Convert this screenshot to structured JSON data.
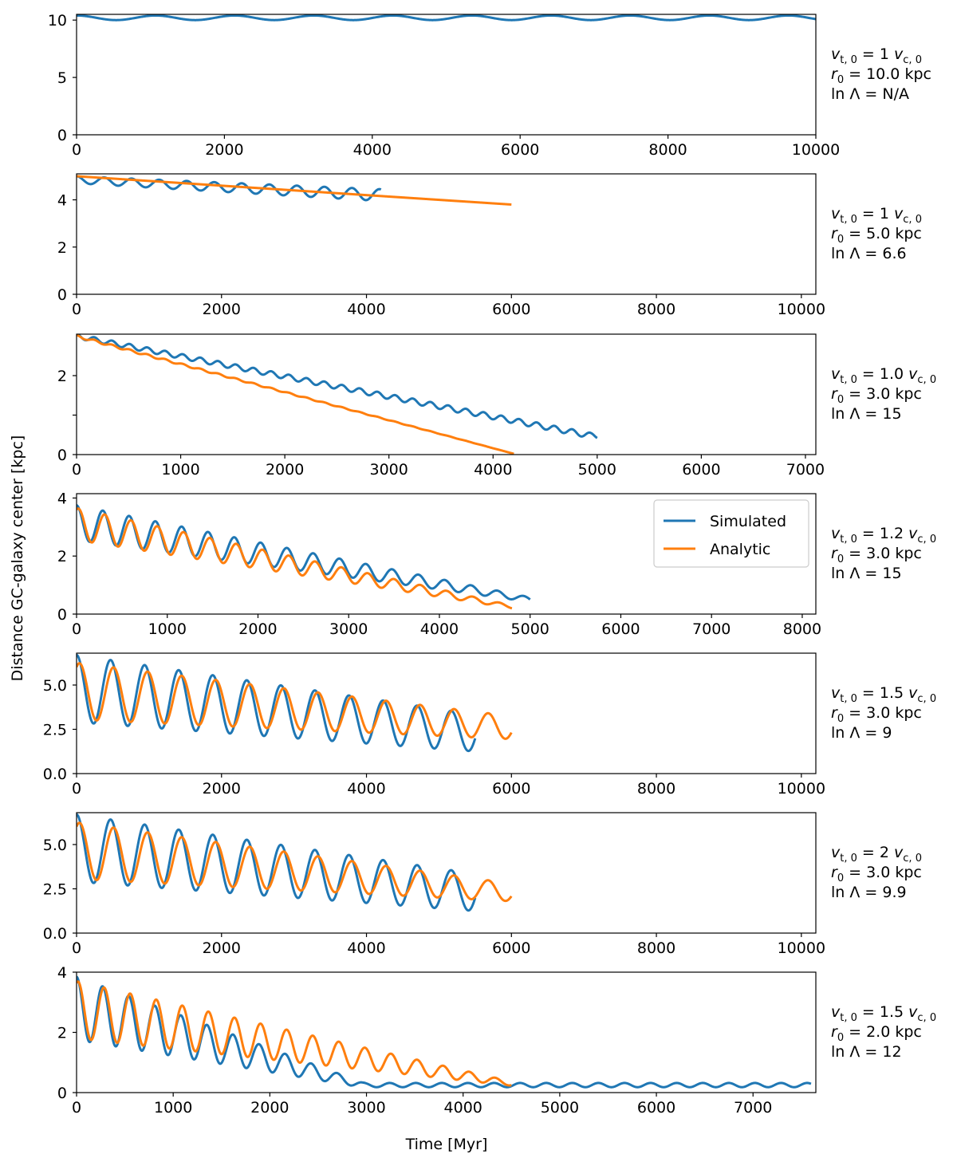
{
  "figure": {
    "ylabel": "Distance GC-galaxy center [kpc]",
    "xlabel": "Time [Myr]",
    "legend": {
      "placement": "upper-right of panel 4",
      "entries": [
        "Simulated",
        "Analytic"
      ]
    },
    "colors": {
      "simulated": "#1f77b4",
      "analytic": "#ff7f0e",
      "axes": "#000000",
      "background": "#ffffff"
    }
  },
  "chart_data": [
    {
      "type": "line",
      "xlim": [
        0,
        10000
      ],
      "ylim": [
        0,
        10.5
      ],
      "xticks": [
        0,
        2000,
        4000,
        6000,
        8000,
        10000
      ],
      "yticks": [
        0,
        5,
        10
      ],
      "ytick_labels": [
        "0",
        "5",
        "10"
      ],
      "annotation": {
        "vt": "1",
        "r0": "10.0",
        "lnL": "N/A"
      },
      "series": [
        {
          "name": "Simulated",
          "kind": "sim",
          "t_end": 10000,
          "r_start": 10.2,
          "r_end": 10.2,
          "amp": 0.2,
          "period": 1070
        }
      ]
    },
    {
      "type": "line",
      "xlim": [
        0,
        10200
      ],
      "ylim": [
        0,
        5.1
      ],
      "xticks": [
        0,
        2000,
        4000,
        6000,
        8000,
        10000
      ],
      "yticks": [
        0,
        2,
        4
      ],
      "ytick_labels": [
        "0",
        "2",
        "4"
      ],
      "annotation": {
        "vt": "1",
        "r0": "5.0",
        "lnL": "6.6"
      },
      "series": [
        {
          "name": "Simulated",
          "kind": "sim",
          "t_end": 4200,
          "r_start": 4.85,
          "r_end": 4.2,
          "amp_start": 0.15,
          "amp_end": 0.25,
          "period": 380
        },
        {
          "name": "Analytic",
          "kind": "analytic",
          "t_end": 6000,
          "r_start": 5.0,
          "r_end": 3.8,
          "amp": 0.0,
          "period": 380
        }
      ]
    },
    {
      "type": "line",
      "xlim": [
        0,
        7100
      ],
      "ylim": [
        0,
        3.05
      ],
      "xticks": [
        0,
        1000,
        2000,
        3000,
        4000,
        5000,
        6000,
        7000
      ],
      "yticks": [
        0,
        1,
        2
      ],
      "ytick_labels": [
        "0",
        "",
        "2"
      ],
      "annotation": {
        "vt": "1.0",
        "r0": "3.0",
        "lnL": "15"
      },
      "series": [
        {
          "name": "Simulated",
          "kind": "sim",
          "t_end": 5000,
          "r_start": 3.0,
          "r_end": 0.45,
          "floor": 0.48,
          "amp_start": 0.06,
          "amp_end": 0.07,
          "period": 170
        },
        {
          "name": "Analytic",
          "kind": "analytic",
          "t_end": 4200,
          "r_start": 3.0,
          "r_end": 0.02,
          "amp_start": 0.03,
          "amp_end": 0.0,
          "period": 170
        }
      ]
    },
    {
      "type": "line",
      "xlim": [
        0,
        8150
      ],
      "ylim": [
        0,
        4.15
      ],
      "xticks": [
        0,
        1000,
        2000,
        3000,
        4000,
        5000,
        6000,
        7000,
        8000
      ],
      "yticks": [
        0,
        2,
        4
      ],
      "ytick_labels": [
        "0",
        "2",
        "4"
      ],
      "annotation": {
        "vt": "1.2",
        "r0": "3.0",
        "lnL": "15"
      },
      "legend": true,
      "series": [
        {
          "name": "Simulated",
          "kind": "sim",
          "t_end": 5000,
          "r_start": 3.15,
          "r_end": 0.5,
          "floor": 0.5,
          "amp_start": 0.6,
          "amp_end": 0.08,
          "period": 290,
          "phase": 0.0
        },
        {
          "name": "Analytic",
          "kind": "analytic",
          "t_end": 4800,
          "r_start": 3.1,
          "r_end": 0.25,
          "amp_start": 0.55,
          "amp_end": 0.05,
          "period": 290,
          "phase": -0.45
        }
      ]
    },
    {
      "type": "line",
      "xlim": [
        0,
        10200
      ],
      "ylim": [
        0,
        6.8
      ],
      "xticks": [
        0,
        2000,
        4000,
        6000,
        8000,
        10000
      ],
      "yticks": [
        0,
        2.5,
        5.0
      ],
      "ytick_labels": [
        "0.0",
        "2.5",
        "5.0"
      ],
      "annotation": {
        "vt": "1.5",
        "r0": "3.0",
        "lnL": "9"
      },
      "series": [
        {
          "name": "Simulated",
          "kind": "sim",
          "t_end": 5500,
          "r_start": 4.8,
          "r_end": 2.3,
          "amp_start": 1.9,
          "amp_end": 1.05,
          "period": 470,
          "phase": 0.0
        },
        {
          "name": "Analytic",
          "kind": "analytic",
          "t_end": 6000,
          "r_start": 4.65,
          "r_end": 2.6,
          "amp_start": 1.6,
          "amp_end": 0.65,
          "period": 470,
          "phase": -0.55
        }
      ]
    },
    {
      "type": "line",
      "xlim": [
        0,
        10200
      ],
      "ylim": [
        0,
        6.8
      ],
      "xticks": [
        0,
        2000,
        4000,
        6000,
        8000,
        10000
      ],
      "yticks": [
        0,
        2.5,
        5.0
      ],
      "ytick_labels": [
        "0.0",
        "2.5",
        "5.0"
      ],
      "annotation": {
        "vt": "2",
        "r0": "3.0",
        "lnL": "9.9"
      },
      "series": [
        {
          "name": "Simulated",
          "kind": "sim",
          "t_end": 5500,
          "r_start": 4.8,
          "r_end": 2.3,
          "amp_start": 1.9,
          "amp_end": 1.05,
          "period": 470,
          "phase": 0.0
        },
        {
          "name": "Analytic",
          "kind": "analytic",
          "t_end": 6000,
          "r_start": 4.65,
          "r_end": 2.3,
          "amp_start": 1.6,
          "amp_end": 0.5,
          "period": 470,
          "phase": -0.55
        }
      ]
    },
    {
      "type": "line",
      "xlim": [
        0,
        7650
      ],
      "ylim": [
        0,
        4.0
      ],
      "xticks": [
        0,
        1000,
        2000,
        3000,
        4000,
        5000,
        6000,
        7000
      ],
      "yticks": [
        0,
        2,
        4
      ],
      "ytick_labels": [
        "0",
        "2",
        "4"
      ],
      "annotation": {
        "vt": "1.5",
        "r0": "2.0",
        "lnL": "12"
      },
      "series": [
        {
          "name": "Simulated",
          "kind": "sim",
          "t_end": 7600,
          "r_start": 2.8,
          "r_end": 0.22,
          "floor": 0.25,
          "decay_end": 3000,
          "amp_start": 1.05,
          "amp_end": 0.07,
          "period": 270,
          "phase": 0.0
        },
        {
          "name": "Analytic",
          "kind": "analytic",
          "t_end": 4500,
          "r_start": 2.75,
          "r_end": 0.3,
          "amp_start": 0.95,
          "amp_end": 0.07,
          "period": 270,
          "phase": -0.35
        }
      ]
    }
  ]
}
